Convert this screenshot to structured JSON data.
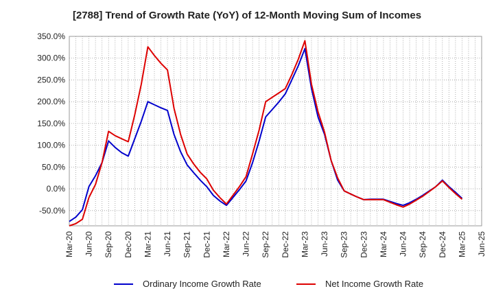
{
  "chart_data": {
    "type": "line",
    "title": "[2788]  Trend of Growth Rate (YoY) of 12-Month Moving Sum of Incomes",
    "xlabel": "",
    "ylabel": "",
    "ylim": [
      -85,
      350
    ],
    "yticks": [
      "350.0%",
      "300.0%",
      "250.0%",
      "200.0%",
      "150.0%",
      "100.0%",
      "50.0%",
      "0.0%",
      "-50.0%"
    ],
    "ytick_values": [
      350,
      300,
      250,
      200,
      150,
      100,
      50,
      0,
      -50
    ],
    "x_labels": [
      "Mar-20",
      "Jun-20",
      "Sep-20",
      "Dec-20",
      "Mar-21",
      "Jun-21",
      "Sep-21",
      "Dec-21",
      "Mar-22",
      "Jun-22",
      "Sep-22",
      "Dec-22",
      "Mar-23",
      "Jun-23",
      "Sep-23",
      "Dec-23",
      "Mar-24",
      "Jun-24",
      "Sep-24",
      "Dec-24",
      "Mar-25",
      "Jun-25"
    ],
    "x_months": [
      "Mar-20",
      "Apr-20",
      "May-20",
      "Jun-20",
      "Jul-20",
      "Aug-20",
      "Sep-20",
      "Oct-20",
      "Nov-20",
      "Dec-20",
      "Jan-21",
      "Feb-21",
      "Mar-21",
      "Apr-21",
      "May-21",
      "Jun-21",
      "Jul-21",
      "Aug-21",
      "Sep-21",
      "Oct-21",
      "Nov-21",
      "Dec-21",
      "Jan-22",
      "Feb-22",
      "Mar-22",
      "Apr-22",
      "May-22",
      "Jun-22",
      "Jul-22",
      "Aug-22",
      "Sep-22",
      "Oct-22",
      "Nov-22",
      "Dec-22",
      "Jan-23",
      "Feb-23",
      "Mar-23",
      "Apr-23",
      "May-23",
      "Jun-23",
      "Jul-23",
      "Aug-23",
      "Sep-23",
      "Oct-23",
      "Nov-23",
      "Dec-23",
      "Jan-24",
      "Feb-24",
      "Mar-24",
      "Apr-24",
      "May-24",
      "Jun-24",
      "Jul-24",
      "Aug-24",
      "Sep-24",
      "Oct-24",
      "Nov-24",
      "Dec-24",
      "Jan-25",
      "Feb-25",
      "Mar-25",
      "Apr-25",
      "May-25",
      "Jun-25"
    ],
    "grid": true,
    "legend_position": "bottom",
    "series": [
      {
        "name": "Ordinary Income Growth Rate",
        "color": "#0000cc",
        "points": [
          [
            "Mar-20",
            -75
          ],
          [
            "Apr-20",
            -65
          ],
          [
            "May-20",
            -48
          ],
          [
            "Jun-20",
            5
          ],
          [
            "Jul-20",
            30
          ],
          [
            "Aug-20",
            60
          ],
          [
            "Sep-20",
            110
          ],
          [
            "Oct-20",
            95
          ],
          [
            "Nov-20",
            83
          ],
          [
            "Dec-20",
            75
          ],
          [
            "Jan-21",
            115
          ],
          [
            "Feb-21",
            155
          ],
          [
            "Mar-21",
            200
          ],
          [
            "Apr-21",
            193
          ],
          [
            "May-21",
            186
          ],
          [
            "Jun-21",
            180
          ],
          [
            "Jul-21",
            125
          ],
          [
            "Aug-21",
            85
          ],
          [
            "Sep-21",
            55
          ],
          [
            "Oct-21",
            37
          ],
          [
            "Nov-21",
            20
          ],
          [
            "Dec-21",
            5
          ],
          [
            "Jan-22",
            -15
          ],
          [
            "Feb-22",
            -28
          ],
          [
            "Mar-22",
            -38
          ],
          [
            "Apr-22",
            -20
          ],
          [
            "May-22",
            -2
          ],
          [
            "Jun-22",
            18
          ],
          [
            "Jul-22",
            60
          ],
          [
            "Aug-22",
            110
          ],
          [
            "Sep-22",
            165
          ],
          [
            "Oct-22",
            182
          ],
          [
            "Nov-22",
            199
          ],
          [
            "Dec-22",
            218
          ],
          [
            "Jan-23",
            250
          ],
          [
            "Feb-23",
            283
          ],
          [
            "Mar-23",
            322
          ],
          [
            "Apr-23",
            230
          ],
          [
            "May-23",
            165
          ],
          [
            "Jun-23",
            125
          ],
          [
            "Jul-23",
            65
          ],
          [
            "Aug-23",
            20
          ],
          [
            "Sep-23",
            -5
          ],
          [
            "Oct-23",
            -12
          ],
          [
            "Nov-23",
            -19
          ],
          [
            "Dec-23",
            -25
          ],
          [
            "Jan-24",
            -24
          ],
          [
            "Feb-24",
            -24
          ],
          [
            "Mar-24",
            -24
          ],
          [
            "Apr-24",
            -29
          ],
          [
            "May-24",
            -34
          ],
          [
            "Jun-24",
            -38
          ],
          [
            "Jul-24",
            -32
          ],
          [
            "Aug-24",
            -24
          ],
          [
            "Sep-24",
            -15
          ],
          [
            "Oct-24",
            -5
          ],
          [
            "Nov-24",
            5
          ],
          [
            "Dec-24",
            20
          ],
          [
            "Jan-25",
            5
          ],
          [
            "Feb-25",
            -8
          ],
          [
            "Mar-25",
            -22
          ]
        ]
      },
      {
        "name": "Net Income Growth Rate",
        "color": "#dd0000",
        "points": [
          [
            "Mar-20",
            -85
          ],
          [
            "Apr-20",
            -80
          ],
          [
            "May-20",
            -70
          ],
          [
            "Jun-20",
            -20
          ],
          [
            "Jul-20",
            10
          ],
          [
            "Aug-20",
            60
          ],
          [
            "Sep-20",
            132
          ],
          [
            "Oct-20",
            122
          ],
          [
            "Nov-20",
            115
          ],
          [
            "Dec-20",
            108
          ],
          [
            "Jan-21",
            170
          ],
          [
            "Feb-21",
            240
          ],
          [
            "Mar-21",
            326
          ],
          [
            "Apr-21",
            306
          ],
          [
            "May-21",
            288
          ],
          [
            "Jun-21",
            273
          ],
          [
            "Jul-21",
            185
          ],
          [
            "Aug-21",
            125
          ],
          [
            "Sep-21",
            80
          ],
          [
            "Oct-21",
            57
          ],
          [
            "Nov-21",
            38
          ],
          [
            "Dec-21",
            23
          ],
          [
            "Jan-22",
            -3
          ],
          [
            "Feb-22",
            -20
          ],
          [
            "Mar-22",
            -35
          ],
          [
            "Apr-22",
            -15
          ],
          [
            "May-22",
            5
          ],
          [
            "Jun-22",
            28
          ],
          [
            "Jul-22",
            80
          ],
          [
            "Aug-22",
            135
          ],
          [
            "Sep-22",
            200
          ],
          [
            "Oct-22",
            210
          ],
          [
            "Nov-22",
            220
          ],
          [
            "Dec-22",
            230
          ],
          [
            "Jan-23",
            262
          ],
          [
            "Feb-23",
            298
          ],
          [
            "Mar-23",
            340
          ],
          [
            "Apr-23",
            240
          ],
          [
            "May-23",
            177
          ],
          [
            "Jun-23",
            130
          ],
          [
            "Jul-23",
            65
          ],
          [
            "Aug-23",
            25
          ],
          [
            "Sep-23",
            -5
          ],
          [
            "Oct-23",
            -12
          ],
          [
            "Nov-23",
            -19
          ],
          [
            "Dec-23",
            -25
          ],
          [
            "Jan-24",
            -25
          ],
          [
            "Feb-24",
            -25
          ],
          [
            "Mar-24",
            -25
          ],
          [
            "Apr-24",
            -31
          ],
          [
            "May-24",
            -37
          ],
          [
            "Jun-24",
            -42
          ],
          [
            "Jul-24",
            -35
          ],
          [
            "Aug-24",
            -26
          ],
          [
            "Sep-24",
            -17
          ],
          [
            "Oct-24",
            -6
          ],
          [
            "Nov-24",
            5
          ],
          [
            "Dec-24",
            18
          ],
          [
            "Jan-25",
            3
          ],
          [
            "Feb-25",
            -11
          ],
          [
            "Mar-25",
            -24
          ]
        ]
      }
    ]
  }
}
